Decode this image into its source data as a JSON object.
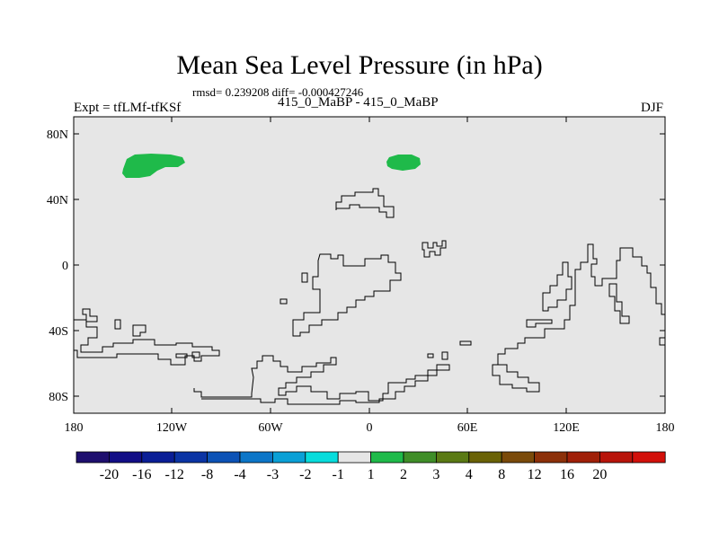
{
  "title": "Mean Sea Level Pressure (in hPa)",
  "stats": "rmsd= 0.239208 diff= -0.000427246",
  "experiment": "Expt = tfLMf-tfKSf",
  "subtitle": "415_0_MaBP - 415_0_MaBP",
  "season": "DJF",
  "map": {
    "background_color": "#e6e6e6",
    "coastline_color": "#000000",
    "y_tick_labels": [
      "80N",
      "40N",
      "0",
      "40S",
      "80S"
    ],
    "x_tick_labels": [
      "180",
      "120W",
      "60W",
      "0",
      "60E",
      "120E",
      "180"
    ],
    "anomaly_regions": [
      {
        "name": "greenland-positive-anomaly",
        "category": "1 to 2",
        "color": "#1fba4a"
      },
      {
        "name": "scandinavia-positive-anomaly",
        "category": "1 to 2",
        "color": "#1fba4a"
      }
    ]
  },
  "colorbar": {
    "colors": [
      "#1e0f6e",
      "#120e86",
      "#0a1e96",
      "#0b34a4",
      "#0c52b6",
      "#0c76c8",
      "#0aa0d6",
      "#07dcdc",
      "#e6e6e6",
      "#1fba4a",
      "#3f8e28",
      "#5a7a14",
      "#6a6206",
      "#7a4a0a",
      "#8c3009",
      "#a02008",
      "#b8140a",
      "#d2100a"
    ],
    "labels": [
      "-20",
      "-16",
      "-12",
      "-8",
      "-4",
      "-3",
      "-2",
      "-1",
      "1",
      "2",
      "3",
      "4",
      "8",
      "12",
      "16",
      "20"
    ]
  }
}
